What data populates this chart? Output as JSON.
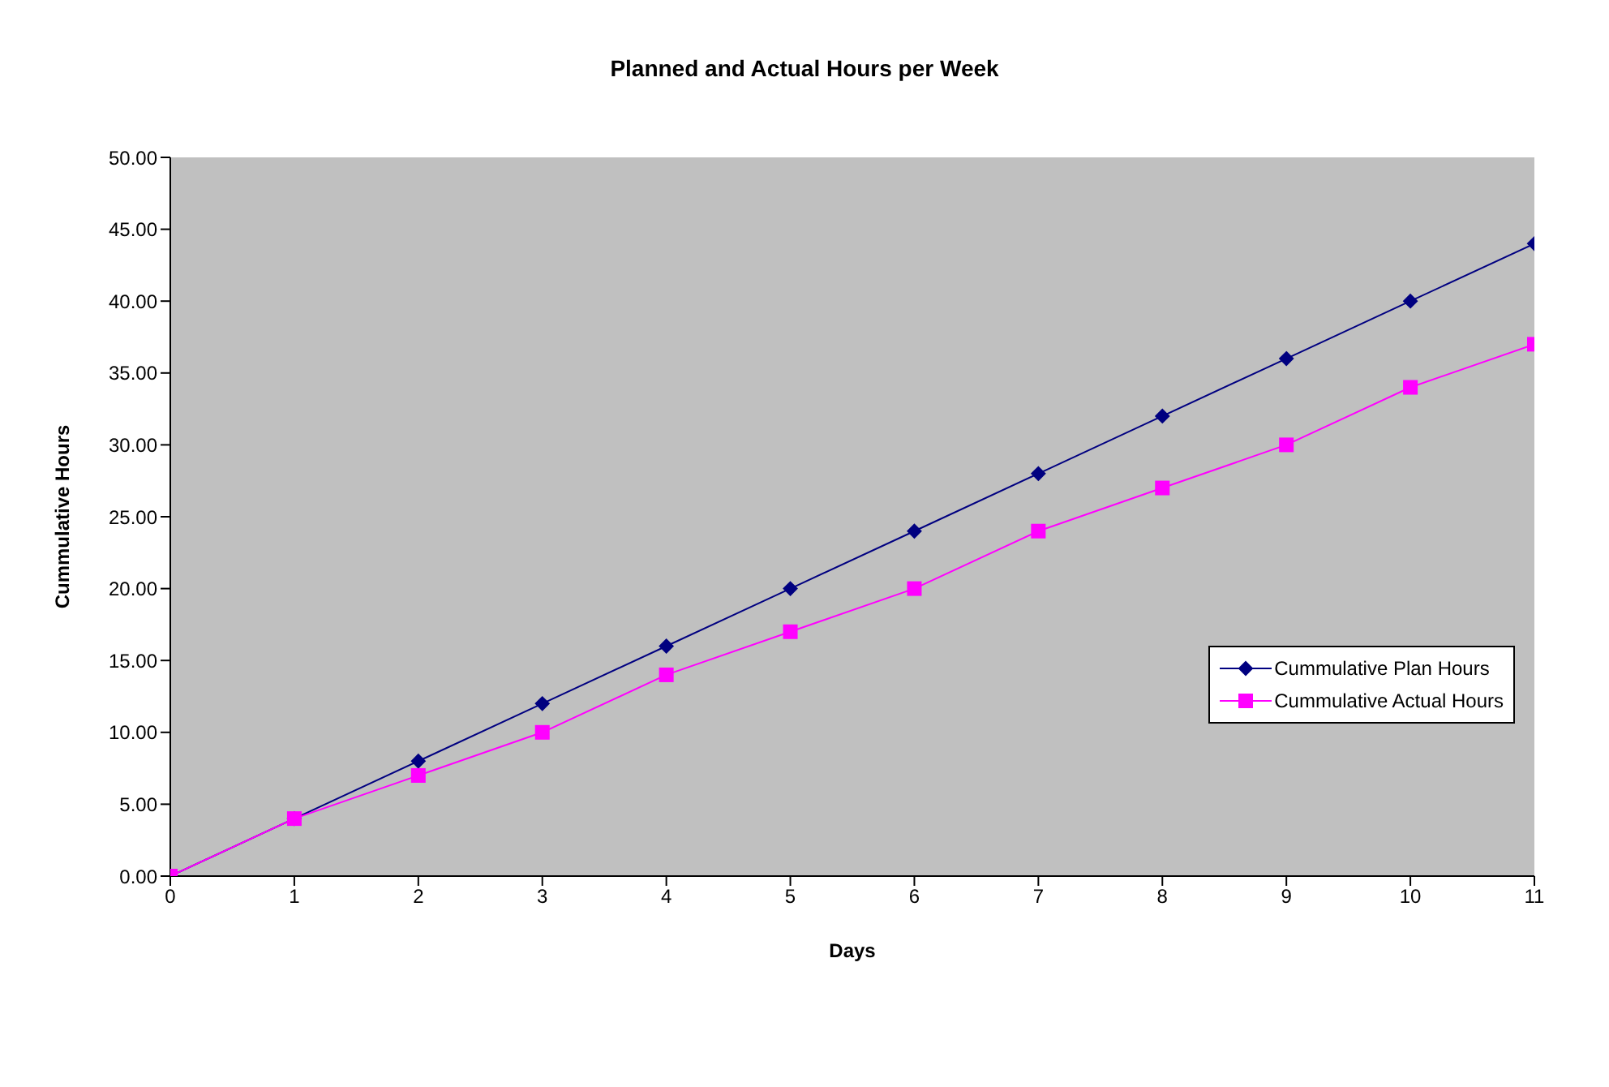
{
  "chart_data": {
    "type": "line",
    "title": "Planned and Actual Hours per Week",
    "xlabel": "Days",
    "ylabel": "Cummulative Hours",
    "x": [
      0,
      1,
      2,
      3,
      4,
      5,
      6,
      7,
      8,
      9,
      10,
      11
    ],
    "series": [
      {
        "name": "Cummulative Plan Hours",
        "color": "#000080",
        "marker": "diamond",
        "values": [
          0,
          4,
          8,
          12,
          16,
          20,
          24,
          28,
          32,
          36,
          40,
          44
        ]
      },
      {
        "name": "Cummulative Actual Hours",
        "color": "#ff00ff",
        "marker": "square",
        "values": [
          0,
          4,
          7,
          10,
          14,
          17,
          20,
          24,
          27,
          30,
          34,
          37
        ]
      }
    ],
    "xlim": [
      0,
      11
    ],
    "xticks": [
      0,
      1,
      2,
      3,
      4,
      5,
      6,
      7,
      8,
      9,
      10,
      11
    ],
    "ylim": [
      0,
      50
    ],
    "yticks": [
      {
        "value": 0,
        "label": "0.00"
      },
      {
        "value": 5,
        "label": "5.00"
      },
      {
        "value": 10,
        "label": "10.00"
      },
      {
        "value": 15,
        "label": "15.00"
      },
      {
        "value": 20,
        "label": "20.00"
      },
      {
        "value": 25,
        "label": "25.00"
      },
      {
        "value": 30,
        "label": "30.00"
      },
      {
        "value": 35,
        "label": "35.00"
      },
      {
        "value": 40,
        "label": "40.00"
      },
      {
        "value": 45,
        "label": "45.00"
      },
      {
        "value": 50,
        "label": "50.00"
      }
    ],
    "grid": false,
    "legend": "right",
    "line_style": "solid"
  }
}
